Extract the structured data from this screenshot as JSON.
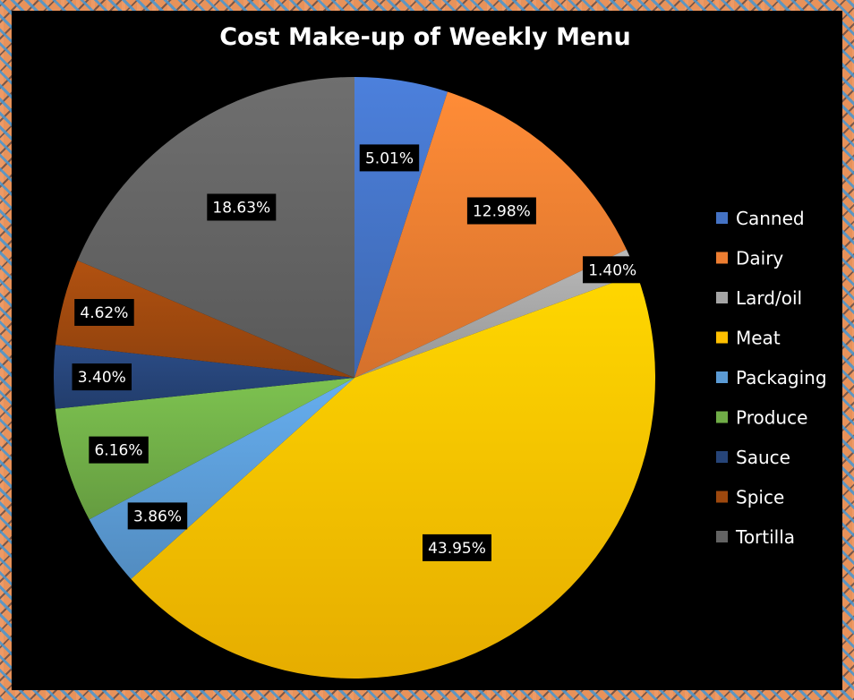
{
  "chart_data": {
    "type": "pie",
    "title": "Cost Make-up of Weekly Menu",
    "legend_position": "right",
    "categories": [
      "Canned",
      "Dairy",
      "Lard/oil",
      "Meat",
      "Packaging",
      "Produce",
      "Sauce",
      "Spice",
      "Tortilla"
    ],
    "values": [
      5.01,
      12.98,
      1.4,
      43.95,
      3.86,
      6.16,
      3.4,
      4.62,
      18.63
    ],
    "labels": [
      "5.01%",
      "12.98%",
      "1.40%",
      "43.95%",
      "3.86%",
      "6.16%",
      "3.40%",
      "4.62%",
      "18.63%"
    ],
    "colors": [
      "#4472c4",
      "#ed7d31",
      "#a5a5a5",
      "#ffc000",
      "#5b9bd5",
      "#70ad47",
      "#264478",
      "#9e480e",
      "#636363"
    ]
  }
}
